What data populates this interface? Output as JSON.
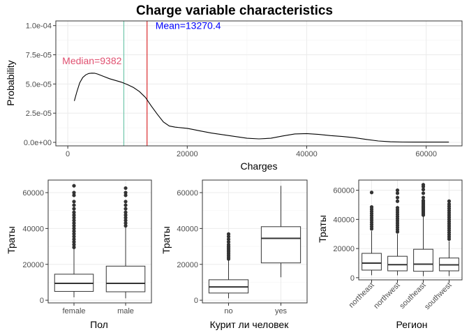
{
  "chart_data": [
    {
      "type": "line",
      "title": "Charge variable characteristics",
      "xlabel": "Charges",
      "ylabel": "Probability",
      "xlim": [
        -2000,
        66000
      ],
      "ylim": [
        -3e-06,
        0.000104
      ],
      "x_ticks": [
        0,
        20000,
        40000,
        60000
      ],
      "x_tick_labels": [
        "0",
        "20000",
        "40000",
        "60000"
      ],
      "y_ticks": [
        0,
        2.5e-05,
        5e-05,
        7.5e-05,
        0.0001
      ],
      "y_tick_labels": [
        "0.0e+00",
        "2.5e-05",
        "5.0e-05",
        "7.5e-05",
        "1.0e-04"
      ],
      "grid": true,
      "series": [
        {
          "x": [
            1100,
            1500,
            2000,
            2500,
            3000,
            3500,
            4000,
            4500,
            5000,
            6000,
            7000,
            8000,
            9000,
            10000,
            11000,
            12000,
            13000,
            14000,
            15000,
            16000,
            17000,
            18000,
            19000,
            20000,
            21000,
            22000,
            24000,
            26000,
            28000,
            30000,
            32000,
            34000,
            36000,
            38000,
            40000,
            42000,
            44000,
            46000,
            48000,
            50000,
            52000,
            54000,
            56000,
            58000,
            60000,
            62000,
            63800
          ],
          "y": [
            3.55e-05,
            4.3e-05,
            5.1e-05,
            5.55e-05,
            5.78e-05,
            5.9e-05,
            5.93e-05,
            5.92e-05,
            5.85e-05,
            5.65e-05,
            5.45e-05,
            5.3e-05,
            5.15e-05,
            4.95e-05,
            4.7e-05,
            4.35e-05,
            3.85e-05,
            3.1e-05,
            2.4e-05,
            1.75e-05,
            1.4e-05,
            1.3e-05,
            1.25e-05,
            1.2e-05,
            1.1e-05,
            1e-05,
            8e-06,
            6.5e-06,
            5e-06,
            3.5e-06,
            3e-06,
            3.5e-06,
            5.5e-06,
            7.2e-06,
            7.5e-06,
            6.8e-06,
            5.8e-06,
            5e-06,
            4e-06,
            2.5e-06,
            1.2e-06,
            5e-07,
            3e-07,
            2e-07,
            2e-07,
            2e-07,
            2e-07
          ]
        }
      ],
      "annotations": [
        {
          "text": "Median=9382",
          "x": 9382,
          "color": "#e05070"
        },
        {
          "text": "Mean=13270.4",
          "x": 13270.4,
          "color": "#0000ff"
        }
      ],
      "vlines": [
        {
          "x": 9382,
          "color": "#66c2a5"
        },
        {
          "x": 13270.4,
          "color": "#d7191c"
        }
      ]
    },
    {
      "type": "box",
      "xlabel": "Пол",
      "ylabel": "Траты",
      "categories": [
        "female",
        "male"
      ],
      "ylim": [
        -1500,
        67000
      ],
      "y_ticks": [
        0,
        20000,
        40000,
        60000
      ],
      "y_tick_labels": [
        "0",
        "20000",
        "40000",
        "60000"
      ],
      "boxes": [
        {
          "min": 1600,
          "q1": 4900,
          "median": 9400,
          "q3": 14500,
          "max": 28900,
          "outliers": [
            29500,
            31000,
            32500,
            34000,
            35500,
            37000,
            38500,
            40000,
            41500,
            43000,
            44500,
            46000,
            47500,
            49000,
            51000,
            53000,
            55000,
            58500,
            60000,
            63800
          ]
        },
        {
          "min": 1100,
          "q1": 4700,
          "median": 9400,
          "q3": 19000,
          "max": 40800,
          "outliers": [
            41500,
            43000,
            44500,
            46000,
            47500,
            49000,
            51000,
            53000,
            55000,
            58500,
            60000,
            62500
          ]
        }
      ]
    },
    {
      "type": "box",
      "xlabel": "Курит ли человек",
      "ylabel": "Траты",
      "categories": [
        "no",
        "yes"
      ],
      "ylim": [
        -1500,
        67000
      ],
      "y_ticks": [
        0,
        20000,
        40000,
        60000
      ],
      "y_tick_labels": [
        "0",
        "20000",
        "40000",
        "60000"
      ],
      "boxes": [
        {
          "min": 1100,
          "q1": 4000,
          "median": 7400,
          "q3": 11400,
          "max": 22400,
          "outliers": [
            23000,
            24000,
            25000,
            26000,
            27000,
            28000,
            29000,
            30000,
            31000,
            32500,
            34000,
            35500,
            36900
          ]
        },
        {
          "min": 12800,
          "q1": 20800,
          "median": 34500,
          "q3": 41000,
          "max": 63800,
          "outliers": []
        }
      ]
    },
    {
      "type": "box",
      "xlabel": "Регион",
      "ylabel": "Траты",
      "categories": [
        "northeast",
        "northwest",
        "southeast",
        "southwest"
      ],
      "ylim": [
        -1500,
        67000
      ],
      "y_ticks": [
        0,
        20000,
        40000,
        60000
      ],
      "y_tick_labels": [
        "0",
        "20000",
        "40000",
        "60000"
      ],
      "boxes": [
        {
          "min": 1700,
          "q1": 5200,
          "median": 10000,
          "q3": 16700,
          "max": 32000,
          "outliers": [
            33500,
            35000,
            36500,
            38000,
            39500,
            41000,
            42500,
            44000,
            45500,
            47000,
            48500,
            58500
          ]
        },
        {
          "min": 1600,
          "q1": 4700,
          "median": 8900,
          "q3": 14700,
          "max": 30000,
          "outliers": [
            31500,
            33000,
            34500,
            36000,
            37500,
            39000,
            40500,
            42000,
            43500,
            45000,
            46500,
            48000,
            52500,
            55000,
            58000,
            60000
          ]
        },
        {
          "min": 1100,
          "q1": 4400,
          "median": 9300,
          "q3": 19500,
          "max": 42000,
          "outliers": [
            43000,
            44000,
            45000,
            46000,
            47000,
            48000,
            49000,
            50000,
            51000,
            52000,
            53000,
            55000,
            58000,
            60500,
            62500,
            63800
          ]
        },
        {
          "min": 1200,
          "q1": 4700,
          "median": 8800,
          "q3": 13500,
          "max": 25000,
          "outliers": [
            26500,
            28000,
            29500,
            31000,
            32500,
            34000,
            35500,
            37000,
            38500,
            40000,
            41500,
            43000,
            44500,
            46000,
            47500,
            49000,
            50500,
            52500
          ]
        }
      ]
    }
  ]
}
